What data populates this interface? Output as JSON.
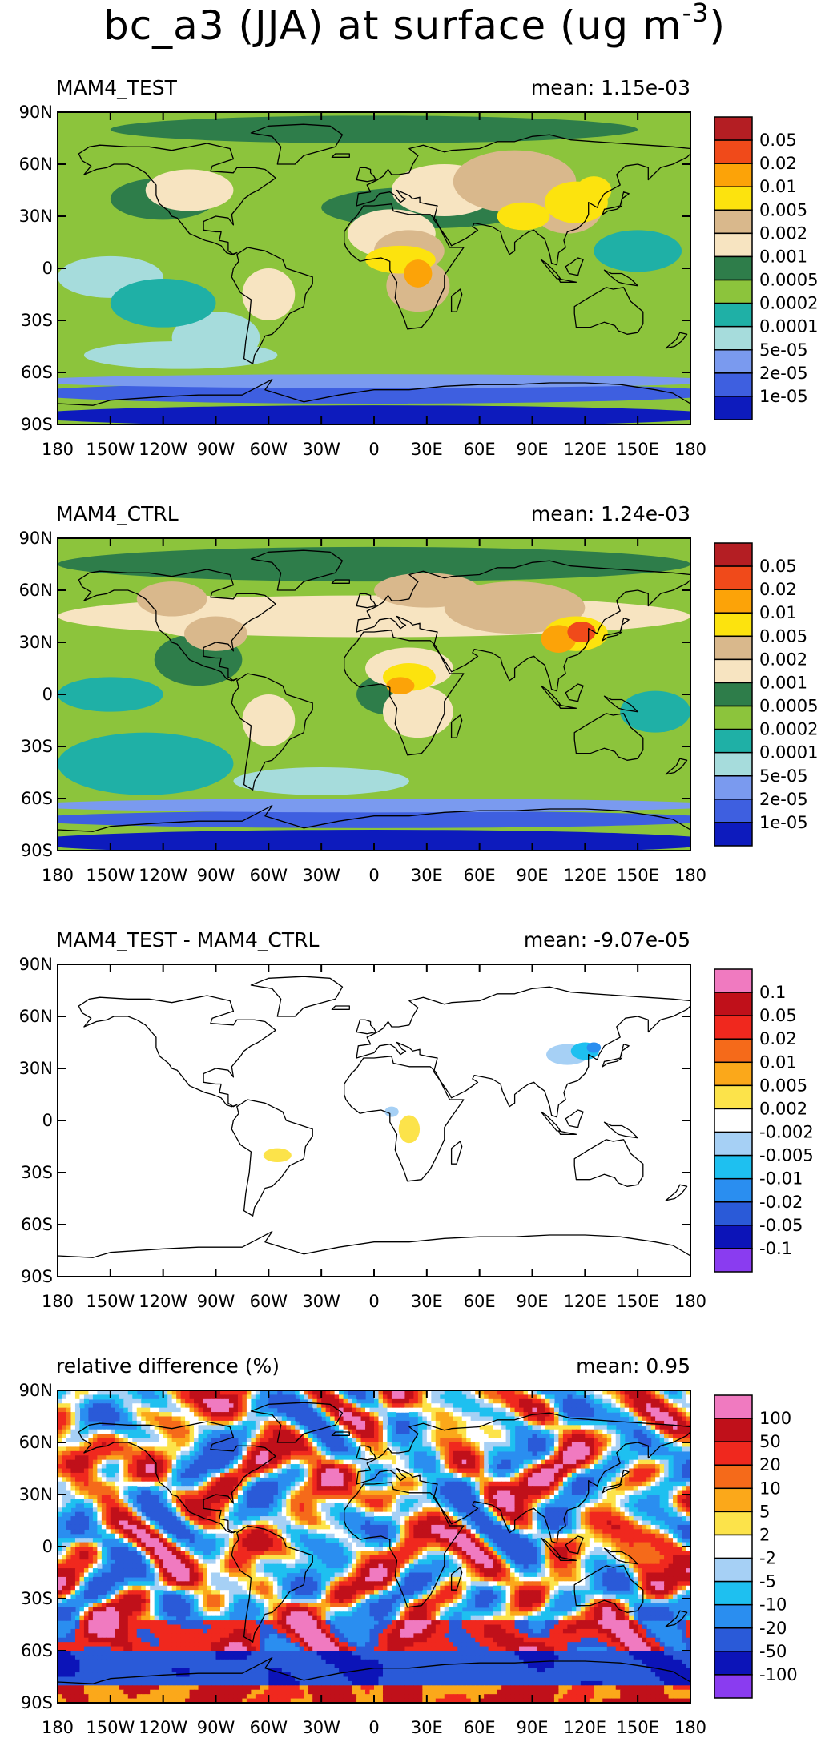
{
  "figure": {
    "title_prefix": "bc_a3 (JJA) at surface (ug m",
    "title_exponent": "-3",
    "title_suffix": ")"
  },
  "chart_data": [
    {
      "type": "heatmap",
      "title": "MAM4_TEST",
      "mean_label": "mean:  1.15e-03",
      "lon_ticks": [
        "180",
        "150W",
        "120W",
        "90W",
        "60W",
        "30W",
        "0",
        "30E",
        "60E",
        "90E",
        "120E",
        "150E",
        "180"
      ],
      "lat_ticks": [
        "90N",
        "60N",
        "30N",
        "0",
        "30S",
        "60S",
        "90S"
      ],
      "xlim": [
        -180,
        180
      ],
      "ylim": [
        -90,
        90
      ],
      "colorbar_labels": [
        "0.05",
        "0.02",
        "0.01",
        "0.005",
        "0.002",
        "0.001",
        "0.0005",
        "0.0002",
        "0.0001",
        "5e-05",
        "2e-05",
        "1e-05"
      ],
      "colorbar_colors": [
        "#b41e23",
        "#f04a1a",
        "#fca308",
        "#fce30e",
        "#d9b88c",
        "#f7e4c1",
        "#2e7d4a",
        "#8cc43c",
        "#1fb0a6",
        "#a6dcdc",
        "#7a9aef",
        "#3e5fe0",
        "#0d1bbd"
      ],
      "scheme": "abs_test"
    },
    {
      "type": "heatmap",
      "title": "MAM4_CTRL",
      "mean_label": "mean:  1.24e-03",
      "lon_ticks": [
        "180",
        "150W",
        "120W",
        "90W",
        "60W",
        "30W",
        "0",
        "30E",
        "60E",
        "90E",
        "120E",
        "150E",
        "180"
      ],
      "lat_ticks": [
        "90N",
        "60N",
        "30N",
        "0",
        "30S",
        "60S",
        "90S"
      ],
      "xlim": [
        -180,
        180
      ],
      "ylim": [
        -90,
        90
      ],
      "colorbar_labels": [
        "0.05",
        "0.02",
        "0.01",
        "0.005",
        "0.002",
        "0.001",
        "0.0005",
        "0.0002",
        "0.0001",
        "5e-05",
        "2e-05",
        "1e-05"
      ],
      "colorbar_colors": [
        "#b41e23",
        "#f04a1a",
        "#fca308",
        "#fce30e",
        "#d9b88c",
        "#f7e4c1",
        "#2e7d4a",
        "#8cc43c",
        "#1fb0a6",
        "#a6dcdc",
        "#7a9aef",
        "#3e5fe0",
        "#0d1bbd"
      ],
      "scheme": "abs_ctrl"
    },
    {
      "type": "heatmap",
      "title": "MAM4_TEST - MAM4_CTRL",
      "mean_label": "mean:  -9.07e-05",
      "lon_ticks": [
        "180",
        "150W",
        "120W",
        "90W",
        "60W",
        "30W",
        "0",
        "30E",
        "60E",
        "90E",
        "120E",
        "150E",
        "180"
      ],
      "lat_ticks": [
        "90N",
        "60N",
        "30N",
        "0",
        "30S",
        "60S",
        "90S"
      ],
      "xlim": [
        -180,
        180
      ],
      "ylim": [
        -90,
        90
      ],
      "colorbar_labels": [
        "0.1",
        "0.05",
        "0.02",
        "0.01",
        "0.005",
        "0.002",
        "-0.002",
        "-0.005",
        "-0.01",
        "-0.02",
        "-0.05",
        "-0.1"
      ],
      "colorbar_colors": [
        "#f07ac0",
        "#c0101a",
        "#f0281e",
        "#f56a1a",
        "#fba81a",
        "#fce34a",
        "#ffffff",
        "#a6d0f5",
        "#1ec0f0",
        "#2a8ef0",
        "#2a5ad8",
        "#0c14b8",
        "#8a3cf0"
      ],
      "scheme": "diff"
    },
    {
      "type": "heatmap",
      "title": "relative difference (%)",
      "mean_label": "mean:   0.95",
      "lon_ticks": [
        "180",
        "150W",
        "120W",
        "90W",
        "60W",
        "30W",
        "0",
        "30E",
        "60E",
        "90E",
        "120E",
        "150E",
        "180"
      ],
      "lat_ticks": [
        "90N",
        "60N",
        "30N",
        "0",
        "30S",
        "60S",
        "90S"
      ],
      "xlim": [
        -180,
        180
      ],
      "ylim": [
        -90,
        90
      ],
      "colorbar_labels": [
        "100",
        "50",
        "20",
        "10",
        "5",
        "2",
        "-2",
        "-5",
        "-10",
        "-20",
        "-50",
        "-100"
      ],
      "colorbar_colors": [
        "#f07ac0",
        "#c0101a",
        "#f0281e",
        "#f56a1a",
        "#fba81a",
        "#fce34a",
        "#ffffff",
        "#a6d0f5",
        "#1ec0f0",
        "#2a8ef0",
        "#2a5ad8",
        "#0c14b8",
        "#8a3cf0"
      ],
      "scheme": "rel"
    }
  ]
}
